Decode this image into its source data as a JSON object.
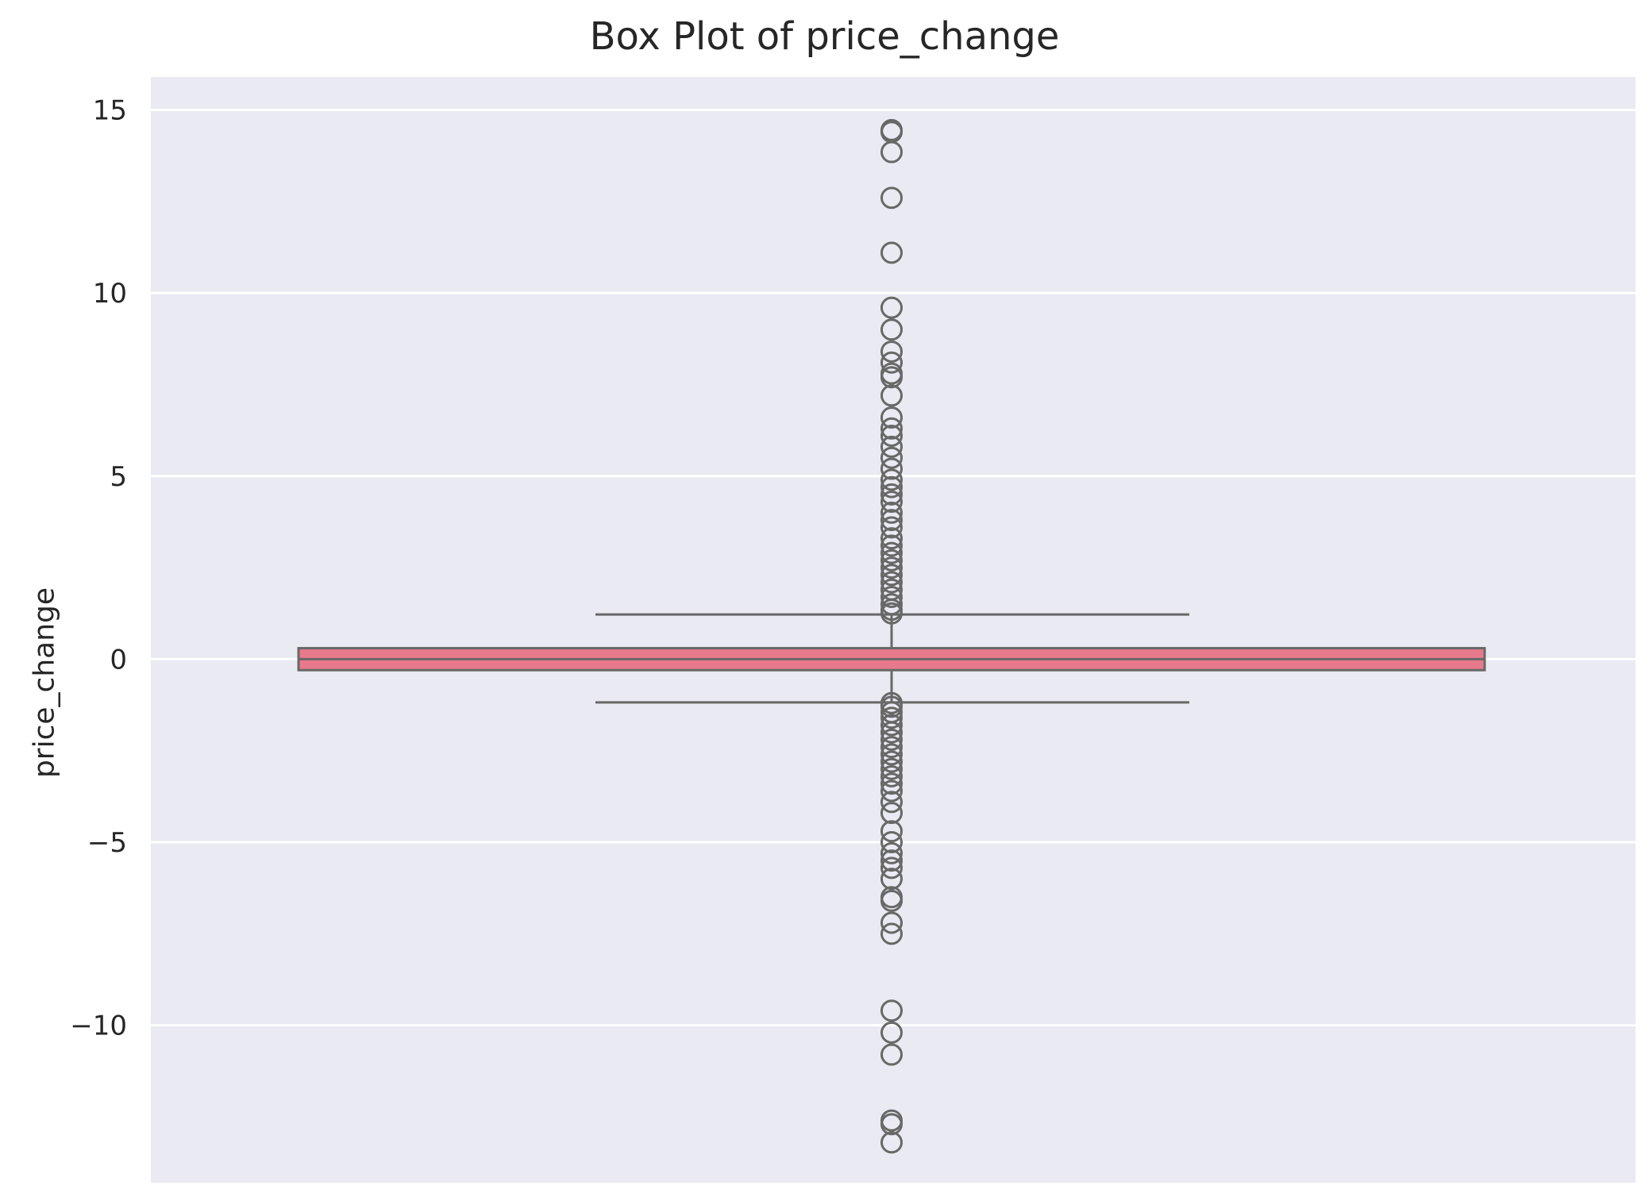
{
  "chart_data": {
    "type": "box",
    "title": "Box Plot of price_change",
    "xlabel": "",
    "ylabel": "price_change",
    "ylim": [
      -14.3,
      15.9
    ],
    "yticks": [
      15,
      10,
      5,
      0,
      -5,
      -10
    ],
    "ytick_labels": [
      "15",
      "10",
      "5",
      "0",
      "−5",
      "−10"
    ],
    "grid": true,
    "background": "#eaeaf2",
    "colors": {
      "box_fill": "#e8798d",
      "line": "#686868",
      "grid": "#ffffff"
    },
    "box": {
      "q1": -0.3,
      "median": 0.0,
      "q3": 0.3,
      "whisker_low": -1.18,
      "whisker_high": 1.22
    },
    "outliers": [
      14.45,
      14.4,
      13.85,
      12.6,
      11.1,
      9.6,
      9.0,
      8.4,
      8.1,
      7.8,
      7.7,
      7.2,
      6.6,
      6.3,
      6.1,
      5.8,
      5.5,
      5.2,
      4.9,
      4.7,
      4.5,
      4.3,
      4.0,
      3.8,
      3.6,
      3.3,
      3.1,
      2.9,
      2.7,
      2.5,
      2.3,
      2.1,
      1.9,
      1.7,
      1.5,
      1.35,
      1.25,
      -1.2,
      -1.3,
      -1.45,
      -1.6,
      -1.8,
      -2.0,
      -2.2,
      -2.4,
      -2.6,
      -2.8,
      -3.0,
      -3.2,
      -3.4,
      -3.6,
      -3.9,
      -4.2,
      -4.7,
      -5.0,
      -5.3,
      -5.5,
      -5.7,
      -6.0,
      -6.5,
      -6.6,
      -7.2,
      -7.5,
      -9.6,
      -10.2,
      -10.8,
      -12.6,
      -12.7,
      -13.2
    ]
  }
}
